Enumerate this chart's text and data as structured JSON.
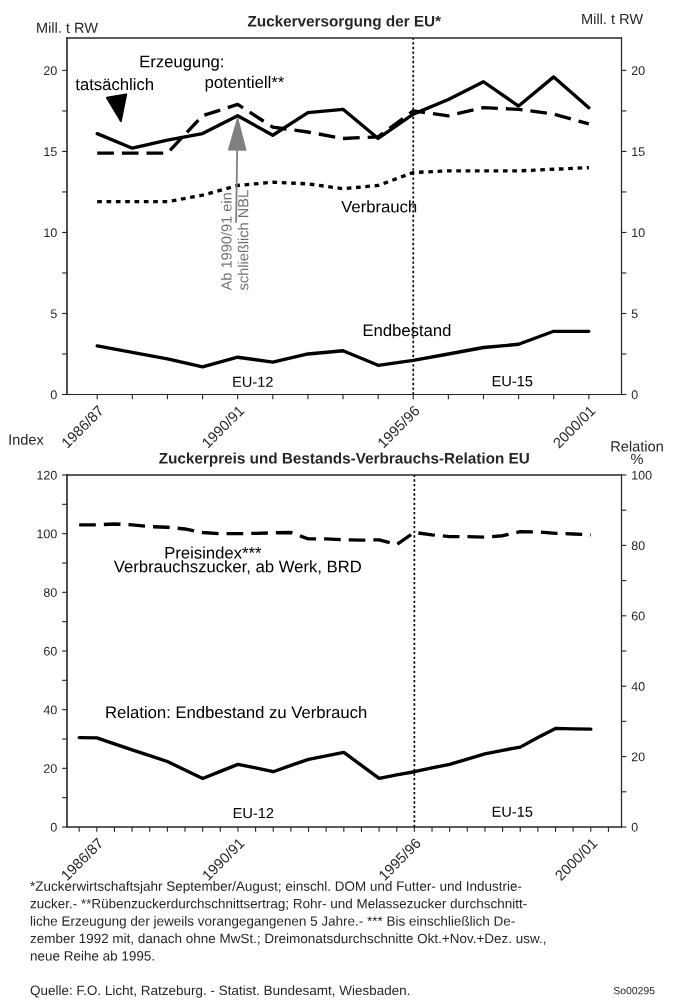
{
  "chart_data": [
    {
      "type": "line",
      "title": "Zuckerversorgung der EU*",
      "ylabel": "Mill. t RW",
      "y2label": "Mill. t RW",
      "categories": [
        "1986/87",
        null,
        null,
        null,
        "1990/91",
        null,
        null,
        null,
        null,
        "1995/96",
        null,
        null,
        null,
        null,
        "2000/01"
      ],
      "ylim": [
        0,
        22
      ],
      "yticks": [
        0,
        {
          "value": 2.5,
          "label": null
        },
        5,
        {
          "value": 7.5,
          "label": null
        },
        10,
        {
          "value": 12.5,
          "label": null
        },
        15,
        {
          "value": 17.5,
          "label": null
        },
        20
      ],
      "y2lim": [
        0,
        22
      ],
      "y2ticks": [
        0,
        {
          "value": 2.5,
          "label": null
        },
        5,
        {
          "value": 7.5,
          "label": null
        },
        10,
        {
          "value": 12.5,
          "label": null
        },
        15,
        {
          "value": 17.5,
          "label": null
        },
        20
      ],
      "ref_lines": [
        {
          "axis": "x",
          "value": "1995/96",
          "color": "#000000",
          "line_style": "dotted"
        }
      ],
      "series": [
        {
          "color": "#000000",
          "line_style": "solid",
          "values": [
            16.1,
            15.2,
            15.7,
            16.1,
            17.2,
            16.0,
            17.4,
            17.6,
            15.8,
            17.3,
            18.2,
            19.3,
            17.8,
            19.6,
            17.7
          ]
        },
        {
          "color": "#000000",
          "line_style": "dashed",
          "values": [
            14.9,
            14.9,
            14.9,
            17.2,
            17.9,
            16.5,
            16.2,
            15.8,
            15.9,
            17.5,
            17.2,
            17.7,
            17.6,
            17.3,
            16.7
          ]
        },
        {
          "color": "#000000",
          "line_style": "dotted",
          "values": [
            11.9,
            11.9,
            11.9,
            12.3,
            12.9,
            13.1,
            13.0,
            12.7,
            12.9,
            13.7,
            13.8,
            13.8,
            13.8,
            13.9,
            14.0
          ]
        },
        {
          "color": "#000000",
          "line_style": "solid",
          "values": [
            3.0,
            2.6,
            2.2,
            1.7,
            2.3,
            2.0,
            2.5,
            2.7,
            1.8,
            2.1,
            2.5,
            2.9,
            3.1,
            3.9,
            3.9
          ]
        }
      ],
      "annotations": [
        "Erzeugung:",
        "tatsächlich",
        "potentiell**",
        {
          "text": "Ab 1990/91 ein\nschließlich NBL",
          "x": "1990/91",
          "y": 17.2
        },
        "Verbrauch",
        "Endbestand",
        "EU-12",
        "EU-15"
      ]
    },
    {
      "type": "line",
      "title": "Zuckerpreis und Bestands-Verbrauchs-Relation EU",
      "ylabel": "Index",
      "y2label": "Relation\n%",
      "categories": [
        null,
        "1986/87",
        null,
        null,
        null,
        null,
        null,
        null,
        null,
        "1990/91",
        null,
        null,
        null,
        null,
        null,
        null,
        null,
        null,
        null,
        "1995/96",
        null,
        null,
        null,
        null,
        null,
        null,
        null,
        null,
        null,
        "2000/01",
        null
      ],
      "ylim": [
        0,
        120
      ],
      "yticks": [
        0,
        {
          "value": 10,
          "label": null
        },
        20,
        {
          "value": 30,
          "label": null
        },
        40,
        {
          "value": 50,
          "label": null
        },
        60,
        {
          "value": 70,
          "label": null
        },
        80,
        {
          "value": 90,
          "label": null
        },
        100,
        {
          "value": 110,
          "label": null
        },
        120
      ],
      "y2lim": [
        0,
        100
      ],
      "y2ticks": [
        0,
        {
          "value": 10,
          "label": null
        },
        20,
        {
          "value": 30,
          "label": null
        },
        40,
        {
          "value": 50,
          "label": null
        },
        60,
        {
          "value": 70,
          "label": null
        },
        80,
        {
          "value": 90,
          "label": null
        },
        100
      ],
      "ref_lines": [
        {
          "axis": "x",
          "value": "1995/96",
          "color": "#000000",
          "line_style": "dotted"
        }
      ],
      "series": [
        {
          "color": "#000000",
          "line_style": "dashed",
          "values": [
            103.0,
            103.0,
            103.3,
            103.0,
            102.4,
            102.2,
            101.6,
            100.4,
            100.0,
            100.0,
            100.1,
            100.3,
            100.4,
            98.2,
            98.2,
            97.9,
            97.8,
            97.9,
            96.3,
            100.4,
            99.6,
            99.0,
            99.0,
            98.8,
            99.3,
            100.7,
            100.6,
            100.1,
            99.9,
            99.6,
            null
          ]
        },
        {
          "color": "#000000",
          "line_style": "solid",
          "axis": "y2",
          "values": [
            25.4,
            25.3,
            23.6,
            21.9,
            20.3,
            18.6,
            16.2,
            13.8,
            15.8,
            17.8,
            16.8,
            15.7,
            17.5,
            19.2,
            20.2,
            21.2,
            17.5,
            13.8,
            14.8,
            15.7,
            16.8,
            17.8,
            19.3,
            20.8,
            21.8,
            22.7,
            25.4,
            28.0,
            27.9,
            27.8,
            null
          ]
        }
      ],
      "annotations": [
        "Preisindex***",
        "Verbrauchszucker, ab Werk, BRD",
        "Relation: Endbestand zu Verbrauch",
        "EU-12",
        "EU-15",
        "*Zuckerwirtschaftsjahr September/August; einschl. DOM und Futter- und Industrie-\nzucker.- **Rübenzuckerdurchschnittsertrag; Rohr- und Melassezucker durchschnitt-\nliche Erzeugung der jeweils vorangegangenen 5 Jahre.- *** Bis einschließlich De-\nzember 1992 mit, danach ohne MwSt.; Dreimonatsdurchschnitte Okt.+Nov.+Dez. usw.,\nneue Reihe ab 1995.",
        "Quelle: F.O. Licht, Ratzeburg. - Statist. Bundesamt, Wiesbaden.",
        "So00295"
      ]
    }
  ]
}
